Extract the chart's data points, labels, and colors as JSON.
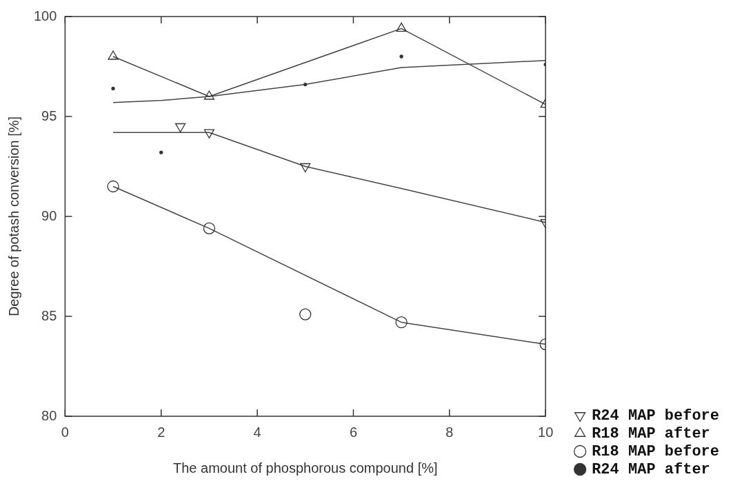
{
  "chart_data": {
    "type": "scatter",
    "xlabel": "The amount of phosphorous compound [%]",
    "ylabel": "Degree of potash conversion [%]",
    "xlim": [
      0,
      10
    ],
    "xticks": [
      0,
      2,
      4,
      6,
      8,
      10
    ],
    "ylim": [
      80,
      100
    ],
    "yticks": [
      80,
      85,
      90,
      95,
      100
    ],
    "legend": "right",
    "line_style": "solid",
    "series": [
      {
        "name": "R24 MAP before",
        "type": "scatter",
        "marker": "triangle-down",
        "color": "#333333",
        "x": [
          2.4,
          3,
          5,
          10
        ],
        "values": [
          94.5,
          94.2,
          92.5,
          89.7
        ]
      },
      {
        "name": "R18 MAP after",
        "type": "scatter",
        "marker": "triangle",
        "color": "#333333",
        "x": [
          1,
          3,
          7,
          10
        ],
        "values": [
          98.0,
          96.0,
          99.4,
          95.6
        ]
      },
      {
        "name": "R18 MAP before",
        "type": "scatter",
        "marker": "circle",
        "color": "#333333",
        "x": [
          1,
          3,
          5,
          7,
          10
        ],
        "values": [
          91.5,
          89.4,
          85.1,
          84.7,
          83.6
        ]
      },
      {
        "name": "R24 MAP after",
        "type": "scatter",
        "marker": "point",
        "color": "#333333",
        "x": [
          1,
          2,
          5,
          7,
          10
        ],
        "values": [
          96.4,
          93.2,
          96.6,
          98.0,
          97.6
        ]
      },
      {
        "type": "line",
        "marker": "none",
        "color": "#444444",
        "x": [
          1,
          3,
          5,
          7,
          10
        ],
        "values": [
          94.2,
          94.2,
          92.5,
          91.4,
          89.7
        ]
      },
      {
        "type": "line",
        "marker": "none",
        "color": "#444444",
        "x": [
          1,
          3,
          7,
          10
        ],
        "values": [
          98.0,
          96.0,
          99.4,
          95.6
        ]
      },
      {
        "type": "line",
        "marker": "none",
        "color": "#444444",
        "x": [
          1,
          3,
          7,
          10
        ],
        "values": [
          91.5,
          89.4,
          84.7,
          83.6
        ]
      },
      {
        "type": "line",
        "marker": "none",
        "color": "#444444",
        "x": [
          1,
          2,
          3,
          5,
          7,
          10
        ],
        "values": [
          95.7,
          95.8,
          96.0,
          96.6,
          97.45,
          97.8
        ]
      }
    ]
  }
}
